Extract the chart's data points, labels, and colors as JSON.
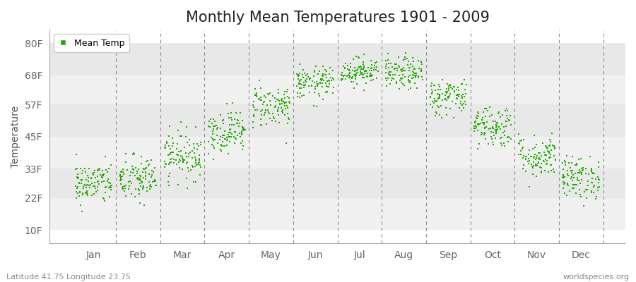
{
  "title": "Monthly Mean Temperatures 1901 - 2009",
  "ylabel": "Temperature",
  "ytick_labels": [
    "10F",
    "22F",
    "33F",
    "45F",
    "57F",
    "68F",
    "80F"
  ],
  "ytick_values": [
    10,
    22,
    33,
    45,
    57,
    68,
    80
  ],
  "ylim": [
    5,
    85
  ],
  "xlim": [
    0.0,
    13.0
  ],
  "months": [
    "Jan",
    "Feb",
    "Mar",
    "Apr",
    "May",
    "Jun",
    "Jul",
    "Aug",
    "Sep",
    "Oct",
    "Nov",
    "Dec"
  ],
  "xtick_positions": [
    1,
    2,
    3,
    4,
    5,
    6,
    7,
    8,
    9,
    10,
    11,
    12
  ],
  "dot_color": "#22aa00",
  "figure_bg": "#ffffff",
  "plot_bg": "#ffffff",
  "band_colors": [
    "#f0f0f0",
    "#e8e8e8"
  ],
  "legend_label": "Mean Temp",
  "footer_left": "Latitude 41.75 Longitude 23.75",
  "footer_right": "worldspecies.org",
  "title_fontsize": 15,
  "axis_fontsize": 10,
  "ylabel_fontsize": 10,
  "n_years": 109,
  "monthly_means_f": [
    27.5,
    29.0,
    38.0,
    47.0,
    56.5,
    65.0,
    69.5,
    68.5,
    60.0,
    49.0,
    37.5,
    29.5
  ],
  "monthly_stds_f": [
    4.0,
    4.5,
    4.5,
    4.0,
    4.0,
    3.0,
    2.5,
    3.0,
    3.5,
    4.0,
    4.0,
    4.0
  ],
  "seed": 42,
  "x_jitter": 0.42
}
